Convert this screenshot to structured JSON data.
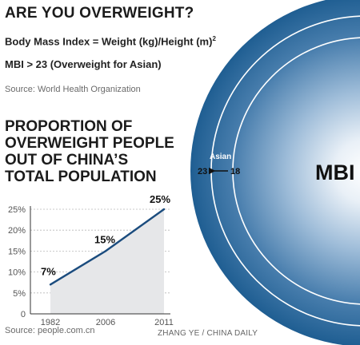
{
  "header": {
    "title": "ARE YOU OVERWEIGHT?",
    "formula": "Body Mass Index = Weight (kg)/Height (m)",
    "formula_exponent": "2",
    "threshold": "MBI > 23 (Overweight for Asian)",
    "source": "Source: World Health Organization"
  },
  "bmi_graphic": {
    "big_label": "MBI",
    "asian_label": "Asian",
    "asian_value": "23",
    "general_value": "18",
    "colors": {
      "outer": "#1f5e92",
      "mid": "#7fa8cf",
      "center": "#ffffff",
      "rings": "#ffffff"
    }
  },
  "chart_title_lines": [
    "PROPORTION OF",
    "OVERWEIGHT PEOPLE",
    "OUT OF CHINA’S",
    "TOTAL POPULATION"
  ],
  "chart_data": {
    "type": "area",
    "title": "PROPORTION OF OVERWEIGHT PEOPLE OUT OF CHINA’S TOTAL POPULATION",
    "x": [
      "1982",
      "2006",
      "2011"
    ],
    "values": [
      7,
      15,
      25
    ],
    "data_labels": [
      "7%",
      "15%",
      "25%"
    ],
    "y_ticks": [
      "0",
      "5%",
      "10%",
      "15%",
      "20%",
      "25%"
    ],
    "ylim": [
      0,
      25
    ],
    "grid": true,
    "colors": {
      "line": "#1b4c7e",
      "fill": "#e6e7e9",
      "grid": "#b8b8b8",
      "axis": "#333333"
    }
  },
  "footer": {
    "source": "Source: people.com.cn",
    "credit": "ZHANG YE / CHINA DAILY"
  }
}
